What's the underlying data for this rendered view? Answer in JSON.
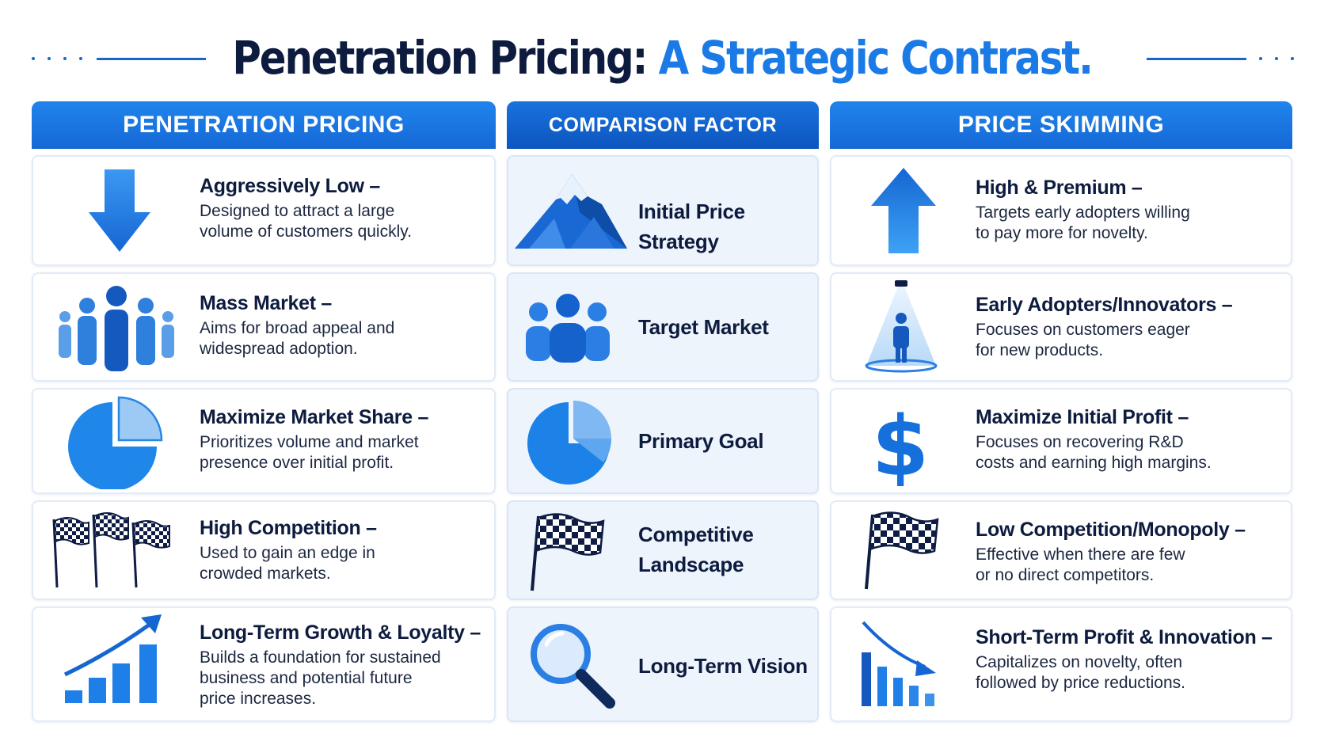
{
  "title": {
    "main": "Penetration Pricing:",
    "accent": "A Strategic Contrast."
  },
  "columns": {
    "left_header": "PENETRATION PRICING",
    "middle_header": "COMPARISON FACTOR",
    "right_header": "PRICE SKIMMING"
  },
  "rows": [
    {
      "factor": "Initial Price Strategy",
      "factor_icon": "mountain-icon",
      "penetration": {
        "lead": "Aggressively Low –",
        "desc_line1": "Designed to attract a large",
        "desc_line2": "volume of customers quickly.",
        "desc_line3": "",
        "icon": "down-arrow-icon"
      },
      "skimming": {
        "lead": "High & Premium –",
        "desc_line1": "Targets early adopters willing",
        "desc_line2": "to pay more for novelty.",
        "desc_line3": "",
        "icon": "up-arrow-icon"
      }
    },
    {
      "factor": "Target Market",
      "factor_icon": "group-icon",
      "penetration": {
        "lead": "Mass Market –",
        "desc_line1": "Aims for broad appeal and",
        "desc_line2": "widespread adoption.",
        "desc_line3": "",
        "icon": "crowd-icon"
      },
      "skimming": {
        "lead": "Early Adopters/Innovators –",
        "desc_line1": "Focuses on customers eager",
        "desc_line2": "for new products.",
        "desc_line3": "",
        "icon": "spotlight-person-icon"
      }
    },
    {
      "factor": "Primary Goal",
      "factor_icon": "pie-chart-icon",
      "penetration": {
        "lead": "Maximize Market Share –",
        "desc_line1": "Prioritizes volume and market",
        "desc_line2": "presence over initial profit.",
        "desc_line3": "",
        "icon": "pie-chart-icon"
      },
      "skimming": {
        "lead": "Maximize Initial Profit –",
        "desc_line1": "Focuses on recovering R&D",
        "desc_line2": "costs and earning high margins.",
        "desc_line3": "",
        "icon": "dollar-icon"
      }
    },
    {
      "factor_line1": "Competitive",
      "factor_line2": "Landscape",
      "factor_icon": "checkered-flag-icon",
      "penetration": {
        "lead": "High Competition –",
        "desc_line1": "Used to gain an edge in",
        "desc_line2": "crowded markets.",
        "desc_line3": "",
        "icon": "three-flags-icon"
      },
      "skimming": {
        "lead": "Low Competition/Monopoly –",
        "desc_line1": "Effective when there are few",
        "desc_line2": "or no direct competitors.",
        "desc_line3": "",
        "icon": "checkered-flag-icon"
      }
    },
    {
      "factor": "Long-Term Vision",
      "factor_icon": "magnifier-icon",
      "penetration": {
        "lead": "Long-Term Growth & Loyalty –",
        "desc_line1": "Builds a foundation for sustained",
        "desc_line2": "business and potential future",
        "desc_line3": "price increases.",
        "icon": "growth-chart-icon"
      },
      "skimming": {
        "lead": "Short-Term Profit & Innovation –",
        "desc_line1": "Capitalizes on novelty, often",
        "desc_line2": "followed by price reductions.",
        "desc_line3": "",
        "icon": "decline-chart-icon"
      }
    }
  ],
  "colors": {
    "navy": "#0d1b3e",
    "accent_blue": "#1a7ae6",
    "header_blue": "#1f7fe8",
    "light_blue": "#9ccaf5"
  }
}
